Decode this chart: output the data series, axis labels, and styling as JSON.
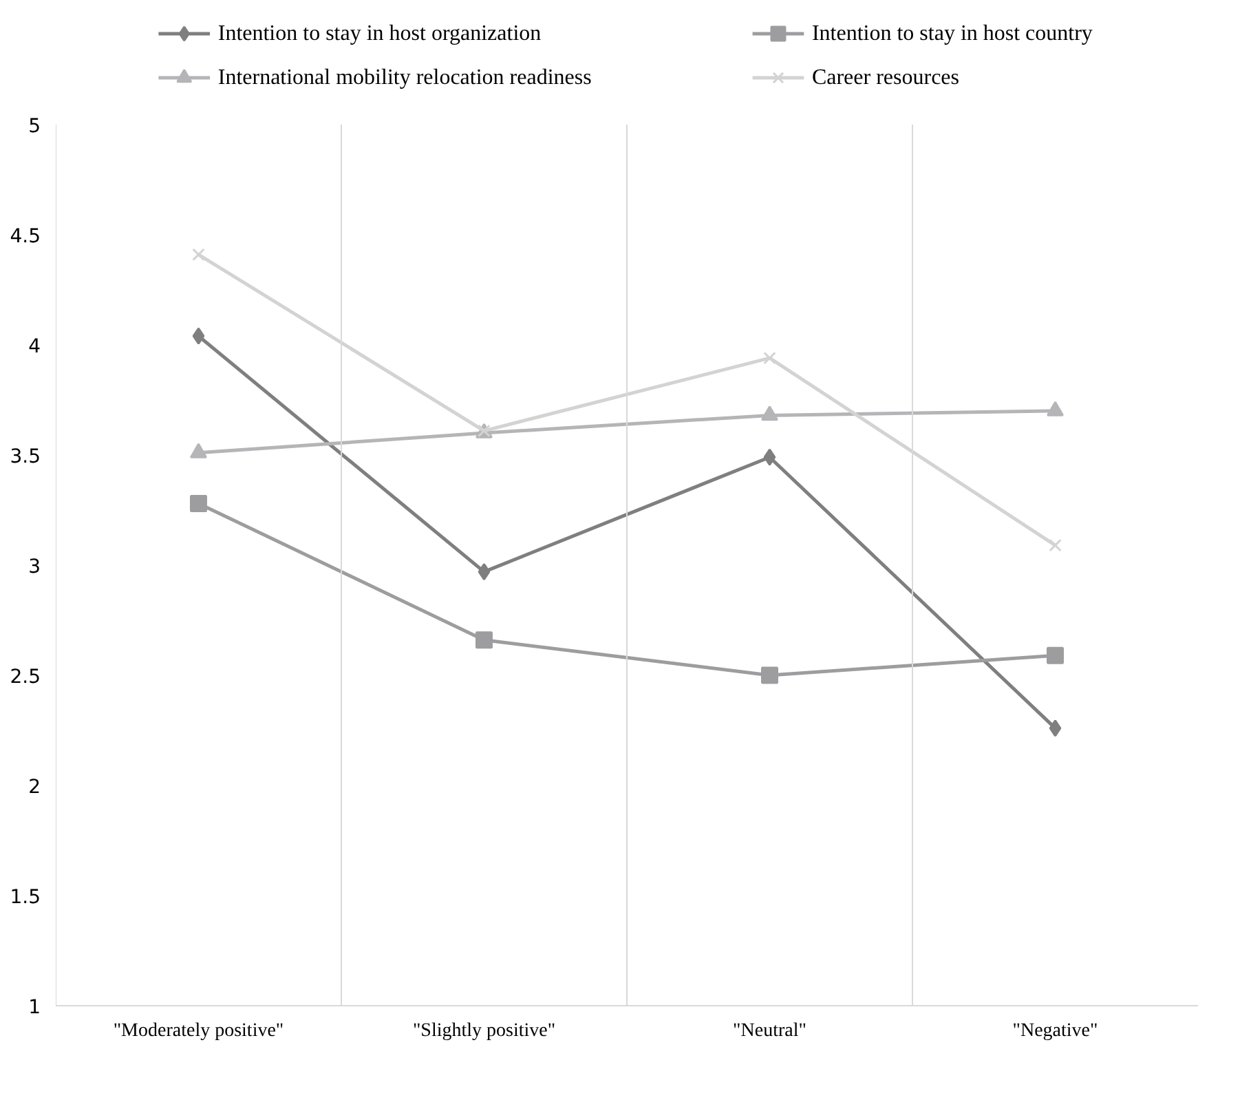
{
  "chart_data": {
    "type": "line",
    "categories": [
      "\"Moderately positive\"",
      "\"Slightly positive\"",
      "\"Neutral\"",
      "\"Negative\""
    ],
    "series": [
      {
        "name": "Intention to stay in host organization",
        "color": "#7f7f80",
        "marker": "diamond",
        "values": [
          4.04,
          2.97,
          3.49,
          2.26
        ]
      },
      {
        "name": "Intention to stay in host country",
        "color": "#9d9da0",
        "marker": "square",
        "values": [
          3.28,
          2.66,
          2.5,
          2.59
        ]
      },
      {
        "name": "International mobility relocation readiness",
        "color": "#b5b5b8",
        "marker": "triangle",
        "values": [
          3.51,
          3.6,
          3.68,
          3.7
        ]
      },
      {
        "name": "Career resources",
        "color": "#d3d3d3",
        "marker": "cross",
        "values": [
          4.41,
          3.61,
          3.94,
          3.09
        ]
      }
    ],
    "ylim": [
      1,
      5
    ],
    "yticks": [
      1,
      1.5,
      2,
      2.5,
      3,
      3.5,
      4,
      4.5,
      5
    ],
    "grid": "x",
    "legend": "top",
    "line_style": "solid"
  }
}
